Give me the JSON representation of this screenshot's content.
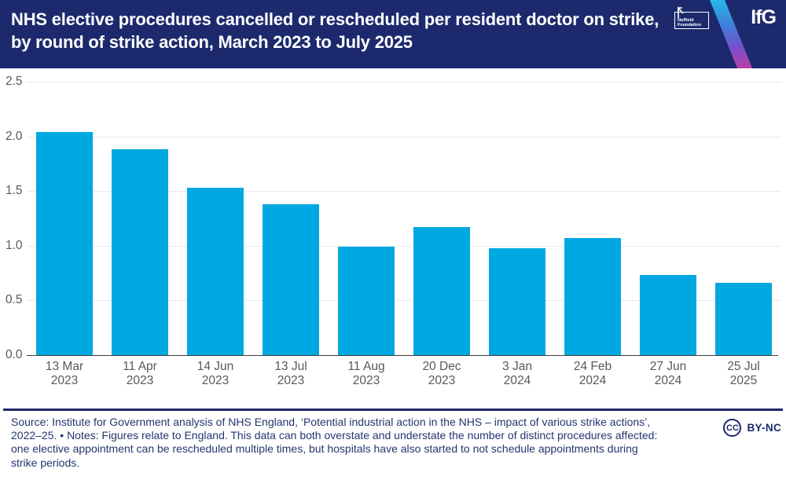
{
  "header": {
    "title_line1": "NHS elective procedures cancelled or rescheduled per resident doctor on strike,",
    "title_line2": "by round of strike action, March 2023 to July 2025",
    "nuffield_line1": "Nuffield",
    "nuffield_line2": "Foundation",
    "ifg": "IfG"
  },
  "chart_data": {
    "type": "bar",
    "title": "NHS elective procedures cancelled or rescheduled per resident doctor on strike, by round of strike action, March 2023 to July 2025",
    "categories": [
      "13 Mar 2023",
      "11 Apr 2023",
      "14 Jun 2023",
      "13 Jul 2023",
      "11 Aug 2023",
      "20 Dec 2023",
      "3 Jan 2024",
      "24 Feb 2024",
      "27 Jun 2024",
      "25 Jul 2025"
    ],
    "category_lines": [
      [
        "13 Mar",
        "2023"
      ],
      [
        "11 Apr",
        "2023"
      ],
      [
        "14 Jun",
        "2023"
      ],
      [
        "13 Jul",
        "2023"
      ],
      [
        "11 Aug",
        "2023"
      ],
      [
        "20 Dec",
        "2023"
      ],
      [
        "3 Jan",
        "2024"
      ],
      [
        "24 Feb",
        "2024"
      ],
      [
        "27 Jun",
        "2024"
      ],
      [
        "25 Jul",
        "2025"
      ]
    ],
    "values": [
      2.04,
      1.88,
      1.53,
      1.38,
      0.99,
      1.17,
      0.98,
      1.07,
      0.73,
      0.66
    ],
    "xlabel": "",
    "ylabel": "",
    "ylim": [
      0,
      2.5
    ],
    "yticks": [
      "0.0",
      "0.5",
      "1.0",
      "1.5",
      "2.0",
      "2.5"
    ],
    "grid": true,
    "legend": "none",
    "bar_color": "#00a8e1"
  },
  "footer": {
    "lines": [
      "Source: Institute for Government analysis of NHS England, ‘Potential industrial action in the NHS – impact of various strike actions’,",
      "2022–25. • Notes: Figures relate to England. This data can both overstate and understate the number of distinct procedures affected:",
      "one elective appointment can be rescheduled multiple times, but hospitals have also started to not schedule appointments during",
      "strike periods."
    ],
    "cc_label": "CC",
    "license_label": "BY-NC"
  },
  "colors": {
    "banner_navy": "#1c2a6d",
    "bar_cyan": "#00a8e1",
    "stripe_top": "#27b6ea",
    "stripe_bottom": "#bb3fa9",
    "tick_gray": "#56595d",
    "gridline_gray": "#e9eaec"
  }
}
